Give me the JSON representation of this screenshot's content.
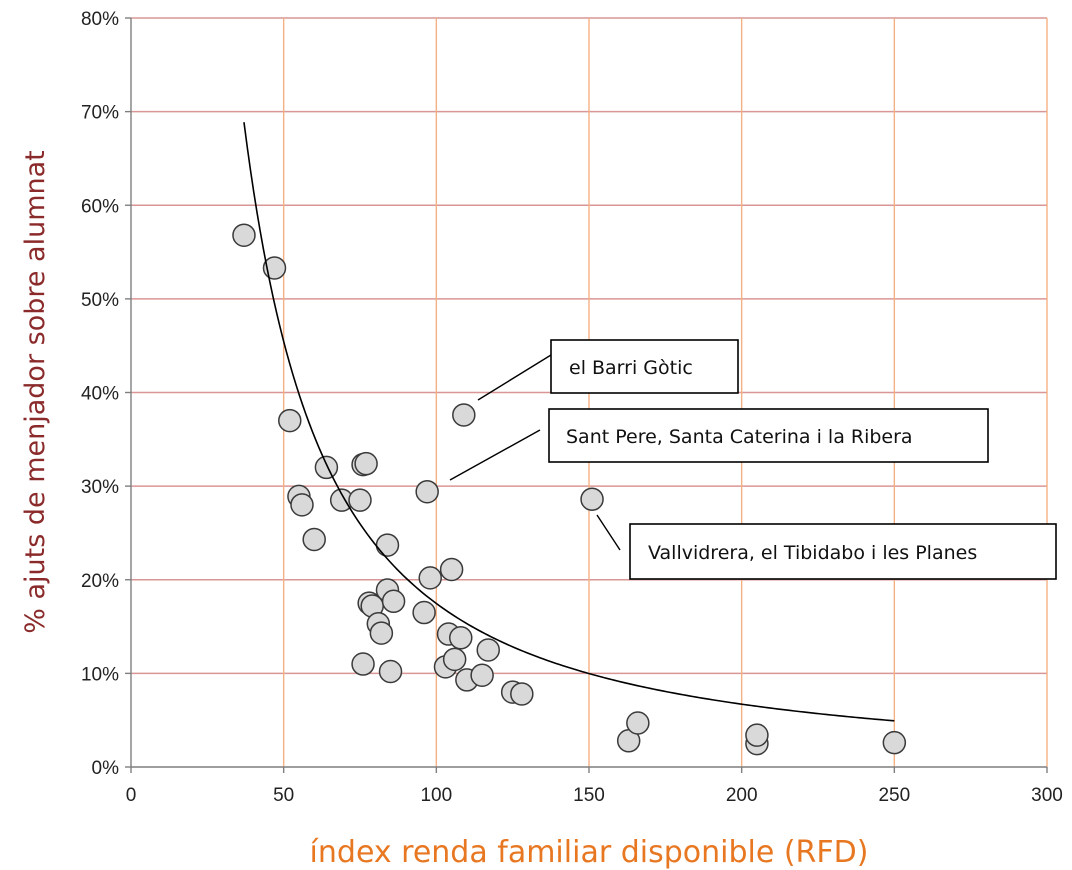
{
  "chart_data": {
    "type": "scatter",
    "title": "",
    "xlabel": "índex renda familiar disponible (RFD)",
    "ylabel": "% ajuts de menjador sobre alumnat",
    "xlim": [
      0,
      300
    ],
    "ylim": [
      0,
      80
    ],
    "x_ticks": [
      "0",
      "50",
      "100",
      "150",
      "200",
      "250",
      "300"
    ],
    "y_ticks": [
      "0%",
      "10%",
      "20%",
      "30%",
      "40%",
      "50%",
      "60%",
      "70%",
      "80%"
    ],
    "grid": true,
    "colors": {
      "vertical_grid": "#f4b183",
      "horizontal_grid": "#d99694",
      "marker_fill": "#d9d9d9",
      "marker_edge": "#3a3a3a",
      "trendline": "#000000",
      "xlabel": "#e87722",
      "ylabel": "#8b2a2a"
    },
    "points": [
      {
        "x": 37,
        "y": 56.8
      },
      {
        "x": 47,
        "y": 53.3
      },
      {
        "x": 52,
        "y": 37.0
      },
      {
        "x": 55,
        "y": 28.9
      },
      {
        "x": 56,
        "y": 28.0
      },
      {
        "x": 60,
        "y": 24.3
      },
      {
        "x": 64,
        "y": 32.0
      },
      {
        "x": 69,
        "y": 28.5
      },
      {
        "x": 75,
        "y": 28.5
      },
      {
        "x": 76,
        "y": 32.3
      },
      {
        "x": 77,
        "y": 32.4
      },
      {
        "x": 76,
        "y": 11.0
      },
      {
        "x": 78,
        "y": 17.5
      },
      {
        "x": 79,
        "y": 17.2
      },
      {
        "x": 81,
        "y": 15.3
      },
      {
        "x": 82,
        "y": 14.3
      },
      {
        "x": 84,
        "y": 18.9
      },
      {
        "x": 84,
        "y": 23.7
      },
      {
        "x": 85,
        "y": 10.2
      },
      {
        "x": 86,
        "y": 17.7
      },
      {
        "x": 96,
        "y": 16.5
      },
      {
        "x": 97,
        "y": 29.4
      },
      {
        "x": 98,
        "y": 20.2
      },
      {
        "x": 103,
        "y": 10.7
      },
      {
        "x": 104,
        "y": 14.2
      },
      {
        "x": 105,
        "y": 21.1
      },
      {
        "x": 106,
        "y": 11.5
      },
      {
        "x": 108,
        "y": 13.8
      },
      {
        "x": 109,
        "y": 37.6
      },
      {
        "x": 110,
        "y": 9.3
      },
      {
        "x": 115,
        "y": 9.8
      },
      {
        "x": 117,
        "y": 12.5
      },
      {
        "x": 125,
        "y": 8.0
      },
      {
        "x": 128,
        "y": 7.8
      },
      {
        "x": 151,
        "y": 28.6
      },
      {
        "x": 163,
        "y": 2.8
      },
      {
        "x": 166,
        "y": 4.7
      },
      {
        "x": 205,
        "y": 2.5
      },
      {
        "x": 205,
        "y": 3.4
      },
      {
        "x": 250,
        "y": 2.6
      }
    ],
    "trendline": {
      "type": "power",
      "a": 10050,
      "b": -1.38,
      "x_start": 37,
      "x_end": 250
    },
    "annotations": [
      {
        "label": "el Barri Gòtic",
        "point": [
          109,
          37.6
        ]
      },
      {
        "label": "Sant Pere, Santa Caterina i la Ribera",
        "point": [
          97,
          29.4
        ]
      },
      {
        "label": "Vallvidrera, el Tibidabo i les Planes",
        "point": [
          151,
          28.6
        ]
      }
    ]
  }
}
